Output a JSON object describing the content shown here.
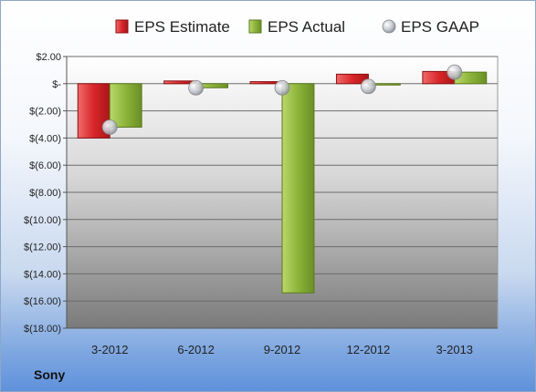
{
  "company": "Sony",
  "chart_data": {
    "type": "bar",
    "categories": [
      "3-2012",
      "6-2012",
      "9-2012",
      "12-2012",
      "3-2013"
    ],
    "series": [
      {
        "name": "EPS Estimate",
        "marker": "bar",
        "color": "#d9262a",
        "values": [
          -4.0,
          0.2,
          0.15,
          0.7,
          0.9
        ]
      },
      {
        "name": "EPS Actual",
        "marker": "bar",
        "color": "#8db33a",
        "values": [
          -3.2,
          -0.3,
          -15.4,
          -0.1,
          0.85
        ]
      },
      {
        "name": "EPS GAAP",
        "marker": "circle",
        "color": "#b8bcc4",
        "values": [
          -3.2,
          -0.3,
          -0.3,
          -0.2,
          0.85
        ]
      }
    ],
    "yticks": [
      "$2.00",
      "$-",
      "$(2.00)",
      "$(4.00)",
      "$(6.00)",
      "$(8.00)",
      "$(10.00)",
      "$(12.00)",
      "$(14.00)",
      "$(16.00)",
      "$(18.00)"
    ],
    "ylim": [
      -18,
      2
    ],
    "grid": true,
    "legend_position": "top"
  }
}
